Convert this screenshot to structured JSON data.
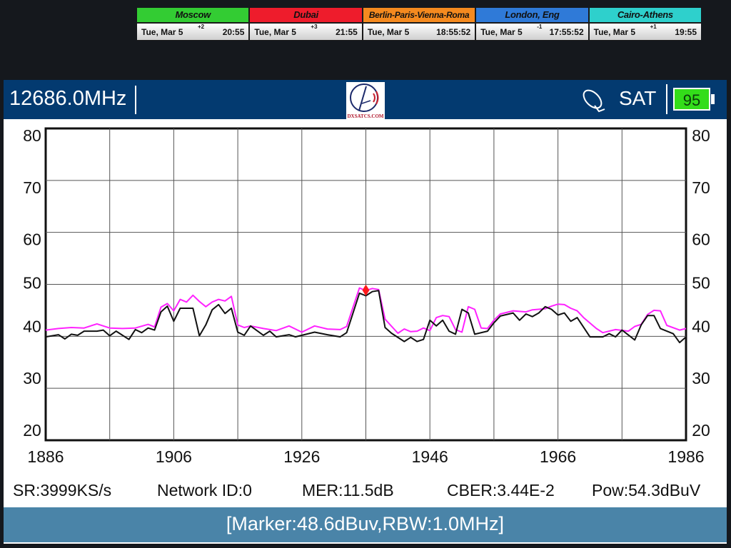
{
  "world_clocks": [
    {
      "city": "Moscow",
      "color": "#33cc33",
      "date": "Tue, Mar 5",
      "offset": "+2",
      "time": "20:55"
    },
    {
      "city": "Dubai",
      "color": "#ee1c2c",
      "date": "Tue, Mar 5",
      "offset": "+3",
      "time": "21:55"
    },
    {
      "city": "Berlin-Paris-Vienna-Roma",
      "color": "#f58a1f",
      "date": "Tue, Mar 5",
      "offset": "",
      "time": "18:55:52"
    },
    {
      "city": "London, Eng",
      "color": "#2f7ad8",
      "date": "Tue, Mar 5",
      "offset": "-1",
      "time": "17:55:52"
    },
    {
      "city": "Cairo-Athens",
      "color": "#2ed0cc",
      "date": "Tue, Mar 5",
      "offset": "+1",
      "time": "19:55"
    }
  ],
  "header": {
    "frequency": "12686.0MHz",
    "logo_text": "DXSATCS.COM",
    "mode": "SAT",
    "mode_icon": "satellite-dish-icon",
    "battery": "95",
    "battery_color": "#33dd1a"
  },
  "stats": {
    "sr": "SR:3999KS/s",
    "network_id": "Network ID:0",
    "mer": "MER:11.5dB",
    "cber": "CBER:3.44E-2",
    "pow": "Pow:54.3dBuV"
  },
  "footer": {
    "marker_info": "[Marker:48.6dBuv,RBW:1.0MHz]"
  },
  "chart_data": {
    "type": "line",
    "xlim": [
      1886,
      1986
    ],
    "ylim": [
      20,
      80
    ],
    "x_ticks": [
      "1886",
      "1906",
      "1926",
      "1946",
      "1966",
      "1986"
    ],
    "y_ticks": [
      "80",
      "70",
      "60",
      "50",
      "40",
      "30",
      "20"
    ],
    "grid": true,
    "marker": {
      "x": 1936,
      "y": 48.6,
      "color": "#ff1a1a"
    },
    "series": [
      {
        "color": "#ff22ff",
        "points": [
          [
            1886,
            41.2
          ],
          [
            1888,
            41.5
          ],
          [
            1890,
            41.7
          ],
          [
            1892,
            41.6
          ],
          [
            1894,
            42.4
          ],
          [
            1896,
            41.6
          ],
          [
            1898,
            41.5
          ],
          [
            1900,
            41.6
          ],
          [
            1902,
            42.3
          ],
          [
            1903,
            41.8
          ],
          [
            1904,
            45.6
          ],
          [
            1905,
            46.3
          ],
          [
            1906,
            44.9
          ],
          [
            1907,
            47.1
          ],
          [
            1908,
            46.6
          ],
          [
            1909,
            47.9
          ],
          [
            1910,
            46.7
          ],
          [
            1911,
            45.7
          ],
          [
            1912,
            46.6
          ],
          [
            1913,
            47.1
          ],
          [
            1914,
            46.8
          ],
          [
            1915,
            47.7
          ],
          [
            1916,
            42.2
          ],
          [
            1917,
            41.7
          ],
          [
            1918,
            42.0
          ],
          [
            1920,
            41.5
          ],
          [
            1922,
            41.1
          ],
          [
            1924,
            42.0
          ],
          [
            1926,
            40.8
          ],
          [
            1928,
            42.0
          ],
          [
            1930,
            41.4
          ],
          [
            1932,
            41.3
          ],
          [
            1933,
            41.9
          ],
          [
            1935,
            49.3
          ],
          [
            1936,
            48.8
          ],
          [
            1937,
            49.2
          ],
          [
            1938,
            49.0
          ],
          [
            1939,
            43.3
          ],
          [
            1941,
            40.6
          ],
          [
            1942,
            41.4
          ],
          [
            1943,
            40.9
          ],
          [
            1944,
            41.0
          ],
          [
            1945,
            41.6
          ],
          [
            1946,
            41.1
          ],
          [
            1947,
            43.6
          ],
          [
            1948,
            44.0
          ],
          [
            1949,
            43.8
          ],
          [
            1950,
            41.3
          ],
          [
            1951,
            40.8
          ],
          [
            1952,
            45.7
          ],
          [
            1953,
            45.2
          ],
          [
            1954,
            41.6
          ],
          [
            1955,
            41.5
          ],
          [
            1956,
            43.1
          ],
          [
            1957,
            44.3
          ],
          [
            1959,
            44.9
          ],
          [
            1961,
            44.7
          ],
          [
            1962,
            45.1
          ],
          [
            1964,
            45.3
          ],
          [
            1965,
            45.8
          ],
          [
            1966,
            46.2
          ],
          [
            1967,
            46.1
          ],
          [
            1968,
            45.4
          ],
          [
            1969,
            44.9
          ],
          [
            1970,
            43.6
          ],
          [
            1972,
            41.5
          ],
          [
            1973,
            40.7
          ],
          [
            1975,
            41.3
          ],
          [
            1977,
            41.0
          ],
          [
            1978,
            41.9
          ],
          [
            1979,
            42.3
          ],
          [
            1980,
            44.2
          ],
          [
            1981,
            45.0
          ],
          [
            1982,
            44.9
          ],
          [
            1983,
            42.1
          ],
          [
            1985,
            41.2
          ],
          [
            1986,
            41.5
          ]
        ]
      },
      {
        "color": "#111111",
        "points": [
          [
            1886,
            39.9
          ],
          [
            1888,
            40.3
          ],
          [
            1889,
            39.5
          ],
          [
            1890,
            40.4
          ],
          [
            1891,
            40.2
          ],
          [
            1892,
            41.0
          ],
          [
            1894,
            41.0
          ],
          [
            1895,
            41.2
          ],
          [
            1896,
            40.1
          ],
          [
            1897,
            41.0
          ],
          [
            1899,
            39.4
          ],
          [
            1900,
            41.3
          ],
          [
            1901,
            40.7
          ],
          [
            1902,
            41.6
          ],
          [
            1903,
            41.2
          ],
          [
            1904,
            44.7
          ],
          [
            1905,
            45.8
          ],
          [
            1906,
            42.9
          ],
          [
            1907,
            45.4
          ],
          [
            1909,
            45.4
          ],
          [
            1910,
            40.1
          ],
          [
            1911,
            42.2
          ],
          [
            1912,
            45.1
          ],
          [
            1913,
            46.1
          ],
          [
            1914,
            44.4
          ],
          [
            1915,
            45.4
          ],
          [
            1916,
            40.8
          ],
          [
            1917,
            40.2
          ],
          [
            1918,
            42.0
          ],
          [
            1920,
            40.2
          ],
          [
            1921,
            41.0
          ],
          [
            1922,
            39.9
          ],
          [
            1924,
            40.3
          ],
          [
            1925,
            39.9
          ],
          [
            1928,
            40.8
          ],
          [
            1930,
            40.3
          ],
          [
            1932,
            39.9
          ],
          [
            1933,
            40.7
          ],
          [
            1935,
            48.3
          ],
          [
            1936,
            47.8
          ],
          [
            1937,
            48.6
          ],
          [
            1938,
            48.8
          ],
          [
            1939,
            41.7
          ],
          [
            1940,
            40.6
          ],
          [
            1942,
            39.0
          ],
          [
            1943,
            39.8
          ],
          [
            1944,
            39.0
          ],
          [
            1945,
            39.4
          ],
          [
            1946,
            43.1
          ],
          [
            1947,
            42.0
          ],
          [
            1948,
            43.1
          ],
          [
            1949,
            41.0
          ],
          [
            1950,
            40.4
          ],
          [
            1951,
            45.2
          ],
          [
            1952,
            44.5
          ],
          [
            1953,
            40.4
          ],
          [
            1955,
            41.0
          ],
          [
            1956,
            42.6
          ],
          [
            1957,
            43.9
          ],
          [
            1959,
            44.5
          ],
          [
            1960,
            43.1
          ],
          [
            1961,
            44.3
          ],
          [
            1962,
            43.8
          ],
          [
            1963,
            44.5
          ],
          [
            1964,
            45.7
          ],
          [
            1965,
            45.2
          ],
          [
            1966,
            44.1
          ],
          [
            1967,
            44.5
          ],
          [
            1968,
            42.9
          ],
          [
            1969,
            43.6
          ],
          [
            1971,
            39.9
          ],
          [
            1973,
            39.9
          ],
          [
            1974,
            40.5
          ],
          [
            1975,
            39.9
          ],
          [
            1976,
            41.2
          ],
          [
            1978,
            39.3
          ],
          [
            1979,
            42.2
          ],
          [
            1980,
            44.0
          ],
          [
            1981,
            44.0
          ],
          [
            1982,
            41.5
          ],
          [
            1984,
            40.5
          ],
          [
            1985,
            38.8
          ],
          [
            1986,
            39.9
          ]
        ]
      }
    ]
  }
}
